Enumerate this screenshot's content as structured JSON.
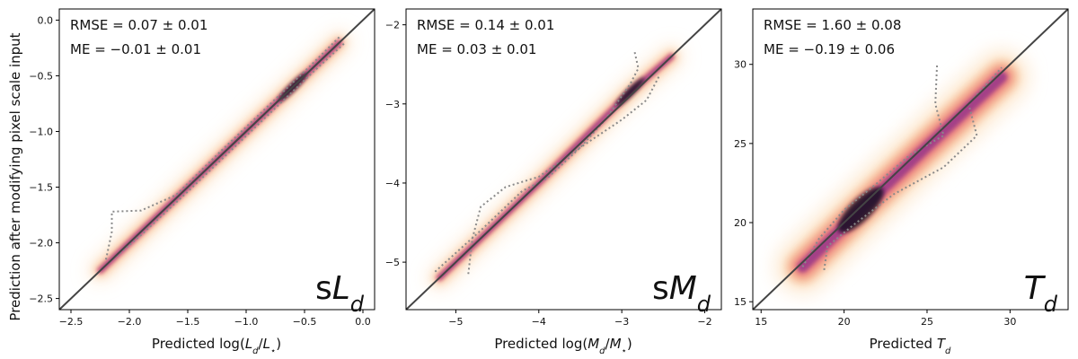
{
  "figure": {
    "ylabel": "Prediction after modifying pixel scale input"
  },
  "chart_data": [
    {
      "type": "scatter",
      "id": "sLd",
      "xlabel": "Predicted log(L_d/L_⋆)",
      "xlim": [
        -2.6,
        0.1
      ],
      "ylim": [
        -2.6,
        0.1
      ],
      "xticks": [
        -2.5,
        -2.0,
        -1.5,
        -1.0,
        -0.5,
        0.0
      ],
      "yticks": [
        -2.5,
        -2.0,
        -1.5,
        -1.0,
        -0.5,
        0.0
      ],
      "tick_decimals": 1,
      "rmse_text": "RMSE = 0.07 ± 0.01",
      "me_text": "ME = −0.01 ± 0.01",
      "panel_label": "sL_d",
      "one_to_one": [
        [
          -2.6,
          -2.6
        ],
        [
          0.1,
          0.1
        ]
      ],
      "ridge": [
        [
          -2.25,
          -2.25
        ],
        [
          -1.5,
          -1.5
        ],
        [
          -0.2,
          -0.2
        ]
      ],
      "density_peak": [
        -0.6,
        -0.6
      ],
      "contour_upper": [
        [
          -2.2,
          -2.15
        ],
        [
          -2.15,
          -1.9
        ],
        [
          -2.15,
          -1.72
        ],
        [
          -1.9,
          -1.71
        ],
        [
          -1.6,
          -1.57
        ],
        [
          -1.2,
          -1.16
        ],
        [
          -0.8,
          -0.76
        ],
        [
          -0.45,
          -0.41
        ],
        [
          -0.2,
          -0.15
        ]
      ],
      "contour_lower": [
        [
          -2.2,
          -2.2
        ],
        [
          -1.9,
          -1.93
        ],
        [
          -1.5,
          -1.54
        ],
        [
          -1.1,
          -1.14
        ],
        [
          -0.7,
          -0.74
        ],
        [
          -0.4,
          -0.44
        ],
        [
          -0.15,
          -0.2
        ]
      ]
    },
    {
      "type": "scatter",
      "id": "sMd",
      "xlabel": "Predicted log(M_d/M_⋆)",
      "xlim": [
        -5.6,
        -1.8
      ],
      "ylim": [
        -5.6,
        -1.8
      ],
      "xticks": [
        -5,
        -4,
        -3,
        -2
      ],
      "yticks": [
        -5,
        -4,
        -3,
        -2
      ],
      "tick_decimals": 0,
      "rmse_text": "RMSE = 0.14 ± 0.01",
      "me_text": "ME = 0.03 ± 0.01",
      "panel_label": "sM_d",
      "one_to_one": [
        [
          -5.6,
          -5.6
        ],
        [
          -1.8,
          -1.8
        ]
      ],
      "ridge": [
        [
          -5.2,
          -5.2
        ],
        [
          -4.0,
          -4.0
        ],
        [
          -2.9,
          -2.85
        ],
        [
          -2.4,
          -2.4
        ]
      ],
      "density_peak": [
        -2.9,
        -2.85
      ],
      "contour_upper": [
        [
          -5.25,
          -5.12
        ],
        [
          -4.7,
          -4.6
        ],
        [
          -4.2,
          -4.1
        ],
        [
          -3.9,
          -3.94
        ],
        [
          -3.5,
          -3.55
        ],
        [
          -3.2,
          -3.2
        ],
        [
          -2.9,
          -2.75
        ],
        [
          -2.8,
          -2.55
        ],
        [
          -2.85,
          -2.32
        ]
      ],
      "contour_lower": [
        [
          -4.85,
          -5.15
        ],
        [
          -4.8,
          -4.7
        ],
        [
          -4.7,
          -4.3
        ],
        [
          -4.4,
          -4.05
        ],
        [
          -4.0,
          -3.92
        ],
        [
          -3.5,
          -3.55
        ],
        [
          -3.0,
          -3.2
        ],
        [
          -2.7,
          -2.95
        ],
        [
          -2.55,
          -2.65
        ]
      ]
    },
    {
      "type": "scatter",
      "id": "Td",
      "xlabel": "Predicted T_d",
      "xlim": [
        14.5,
        33.5
      ],
      "ylim": [
        14.5,
        33.5
      ],
      "xticks": [
        15,
        20,
        25,
        30
      ],
      "yticks": [
        15,
        20,
        25,
        30
      ],
      "tick_decimals": 0,
      "rmse_text": "RMSE = 1.60 ± 0.08",
      "me_text": "ME = −0.19 ± 0.06",
      "panel_label": "T_d",
      "one_to_one": [
        [
          14.5,
          14.5
        ],
        [
          33.5,
          33.5
        ]
      ],
      "ridge": [
        [
          17.5,
          17.2
        ],
        [
          21,
          20.8
        ],
        [
          25,
          24.8
        ],
        [
          29.5,
          29.2
        ]
      ],
      "density_peak": [
        21,
        20.8
      ],
      "contour_upper": [
        [
          17.5,
          17.2
        ],
        [
          18.5,
          19.0
        ],
        [
          20,
          20.8
        ],
        [
          22,
          22.5
        ],
        [
          24,
          24.3
        ],
        [
          26,
          25.5
        ],
        [
          25.5,
          27.5
        ],
        [
          25.6,
          30.0
        ]
      ],
      "contour_lower": [
        [
          18.8,
          17.0
        ],
        [
          19.0,
          18.5
        ],
        [
          20.5,
          19.8
        ],
        [
          23,
          21.8
        ],
        [
          26,
          23.5
        ],
        [
          28,
          25.5
        ],
        [
          27.5,
          27.5
        ],
        [
          29.5,
          29.8
        ]
      ]
    }
  ]
}
